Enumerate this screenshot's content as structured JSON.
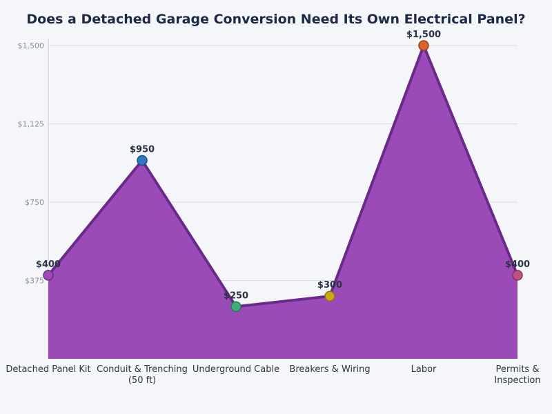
{
  "chart_data": {
    "type": "area",
    "title": "Does a Detached Garage Conversion Need Its Own Electrical Panel?",
    "xlabel": "",
    "ylabel": "",
    "categories": [
      [
        "Detached Panel Kit"
      ],
      [
        "Conduit & Trenching",
        "(50 ft)"
      ],
      [
        "Underground Cable"
      ],
      [
        "Breakers & Wiring"
      ],
      [
        "Labor"
      ],
      [
        "Permits &",
        "Inspection"
      ]
    ],
    "values": [
      400,
      950,
      250,
      300,
      1500,
      400
    ],
    "data_labels": [
      "$400",
      "$950",
      "$250",
      "$300",
      "$1,500",
      "$400"
    ],
    "ylim": [
      0,
      1500
    ],
    "yticks": [
      375,
      750,
      1125,
      1500
    ],
    "ytick_labels": [
      "$375",
      "$750",
      "$1,125",
      "$1,500"
    ],
    "grid": true,
    "colors": {
      "area_fill": "#9b4bb8",
      "area_line": "#6a2a8a",
      "markers": [
        "#9b4bb8",
        "#2f79c2",
        "#3fae7a",
        "#c9a81a",
        "#d8652a",
        "#c0507e"
      ],
      "marker_edges": [
        "#6a2a8a",
        "#1f4f8a",
        "#2a7a55",
        "#8a7312",
        "#9a4318",
        "#8a3458"
      ]
    }
  }
}
